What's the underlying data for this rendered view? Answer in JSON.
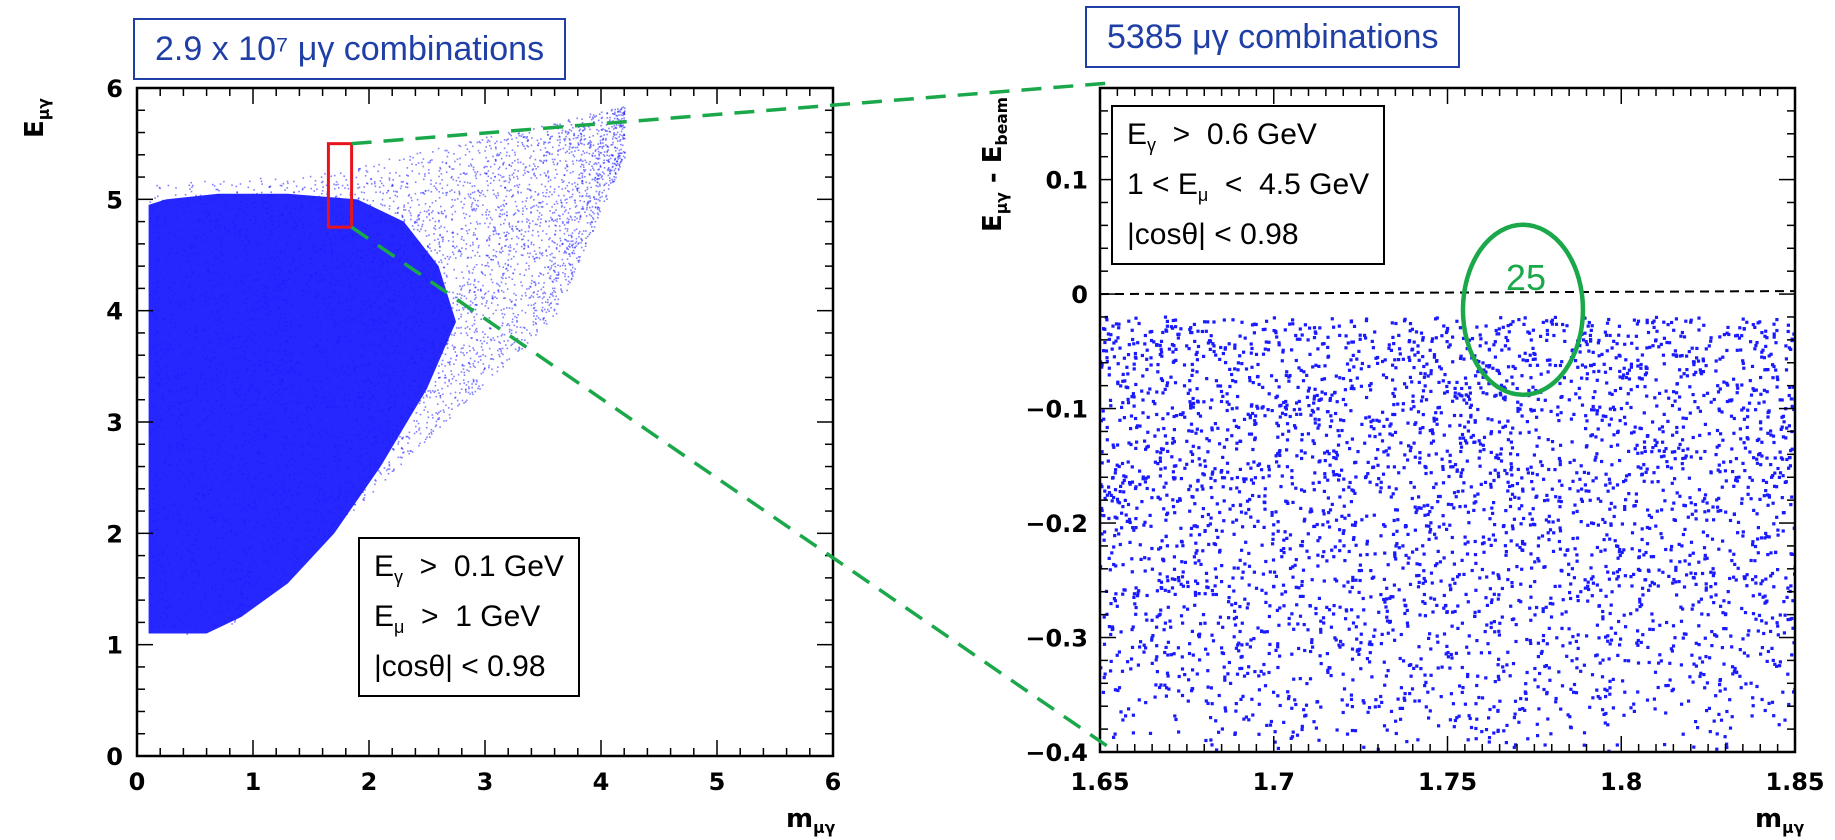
{
  "chart_data": [
    {
      "type": "scatter",
      "title": "2.9 x 10⁷ μγ combinations",
      "xlabel": "m_μγ",
      "ylabel": "E_μγ",
      "xlim": [
        0,
        6
      ],
      "ylim": [
        0,
        6
      ],
      "xticks": [
        "0",
        "1",
        "2",
        "3",
        "4",
        "5",
        "6"
      ],
      "yticks": [
        "0",
        "1",
        "2",
        "3",
        "4",
        "5",
        "6"
      ],
      "point_color": "#1a1aff",
      "cuts": [
        "E_γ > 0.1 GeV",
        "E_μ > 1 GeV",
        "|cosθ| < 0.98"
      ],
      "zoom_region": {
        "x": [
          1.65,
          1.85
        ],
        "y": [
          4.75,
          5.5
        ],
        "color": "#e8141b"
      }
    },
    {
      "type": "scatter",
      "title": "5385 μγ combinations",
      "xlabel": "m_μγ",
      "ylabel": "E_μγ - E_beam",
      "xlim": [
        1.65,
        1.85
      ],
      "ylim": [
        -0.4,
        0.18
      ],
      "xticks": [
        "1.65",
        "1.7",
        "1.75",
        "1.8",
        "1.85"
      ],
      "yticks": [
        "−0.4",
        "−0.3",
        "−0.2",
        "−0.1",
        "0",
        "0.1"
      ],
      "point_color": "#1a1aff",
      "cuts": [
        "E_γ > 0.6 GeV",
        "1 < E_μ < 4.5 GeV",
        "|cosθ| < 0.98"
      ],
      "threshold_line_y": 0.0,
      "annotation": {
        "text": "25",
        "x": 1.772,
        "y": -0.005,
        "color": "#1aa84a"
      }
    }
  ],
  "labels": {
    "left_y": {
      "base": "E",
      "sub": "μγ"
    },
    "left_x": {
      "base": "m",
      "sub": "μγ"
    },
    "right_y": {
      "base": "E",
      "sub": "μγ",
      "minus": " - E",
      "sub2": "beam"
    },
    "right_x": {
      "base": "m",
      "sub": "μγ"
    }
  },
  "cutbox_left": [
    {
      "a": "E",
      "s": "γ",
      "b": "  >  0.1 GeV"
    },
    {
      "a": "E",
      "s": "μ",
      "b": "  >  1 GeV"
    },
    {
      "a": "|cosθ| < 0.98",
      "s": "",
      "b": ""
    }
  ],
  "cutbox_right": [
    {
      "a": "E",
      "s": "γ",
      "b": "  >  0.6 GeV"
    },
    {
      "a": "1 < E",
      "s": "μ",
      "b": "  <  4.5 GeV"
    },
    {
      "a": "|cosθ| < 0.98",
      "s": "",
      "b": ""
    }
  ],
  "colors": {
    "connector": "#1aa84a",
    "frame": "#000000",
    "title": "#1f3fa6"
  }
}
